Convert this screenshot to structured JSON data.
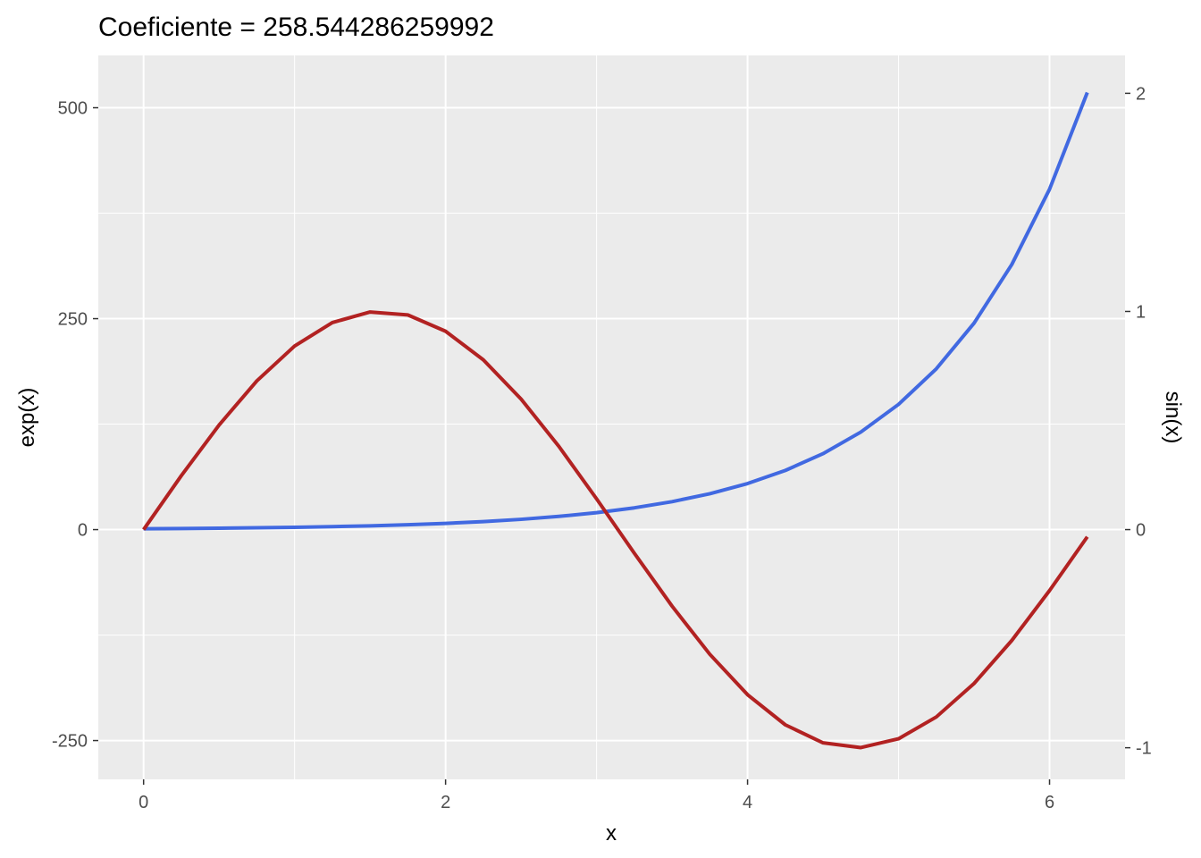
{
  "chart_data": {
    "type": "line",
    "title": "Coeficiente =  258.544286259992",
    "xlabel": "x",
    "ylabel": "exp(x)",
    "y2label": "sin(x)",
    "coefficient": 258.544286259992,
    "xlim": [
      -0.3,
      6.5
    ],
    "ylim": [
      -296,
      562
    ],
    "y2lim": [
      -1.1449,
      2.1737
    ],
    "x_ticks": [
      0,
      2,
      4,
      6
    ],
    "y_ticks": [
      -250,
      0,
      250,
      500
    ],
    "y2_ticks": [
      -1,
      0,
      1,
      2
    ],
    "x_tick_labels": [
      "0",
      "2",
      "4",
      "6"
    ],
    "y_tick_labels": [
      "-250",
      "0",
      "250",
      "500"
    ],
    "y2_tick_labels": [
      "-1",
      "0",
      "1",
      "2"
    ],
    "grid": true,
    "legend": "none",
    "colors": {
      "panel": "#ebebeb",
      "grid": "#ffffff"
    },
    "series": [
      {
        "axis": "left",
        "color": "#4169e1",
        "x": [
          0,
          0.25,
          0.5,
          0.75,
          1,
          1.25,
          1.5,
          1.75,
          2,
          2.25,
          2.5,
          2.75,
          3,
          3.25,
          3.5,
          3.75,
          4,
          4.25,
          4.5,
          4.75,
          5,
          5.25,
          5.5,
          5.75,
          6,
          6.25
        ],
        "y": [
          1,
          1.28,
          1.65,
          2.12,
          2.72,
          3.49,
          4.48,
          5.75,
          7.39,
          9.49,
          12.18,
          15.64,
          20.09,
          25.79,
          33.12,
          42.52,
          54.6,
          70.11,
          90.02,
          115.58,
          148.41,
          190.57,
          244.69,
          314.19,
          403.43,
          518.01
        ]
      },
      {
        "axis": "right",
        "color": "#b22222",
        "x": [
          0,
          0.25,
          0.5,
          0.75,
          1,
          1.25,
          1.5,
          1.75,
          2,
          2.25,
          2.5,
          2.75,
          3,
          3.25,
          3.5,
          3.75,
          4,
          4.25,
          4.5,
          4.75,
          5,
          5.25,
          5.5,
          5.75,
          6,
          6.25
        ],
        "y": [
          0,
          0.2474,
          0.4794,
          0.6816,
          0.8415,
          0.949,
          0.9975,
          0.984,
          0.9093,
          0.7781,
          0.5985,
          0.3817,
          0.1411,
          -0.1082,
          -0.3508,
          -0.5716,
          -0.7568,
          -0.895,
          -0.9775,
          -0.9993,
          -0.9589,
          -0.8589,
          -0.7055,
          -0.5083,
          -0.2794,
          -0.0332
        ]
      }
    ]
  }
}
